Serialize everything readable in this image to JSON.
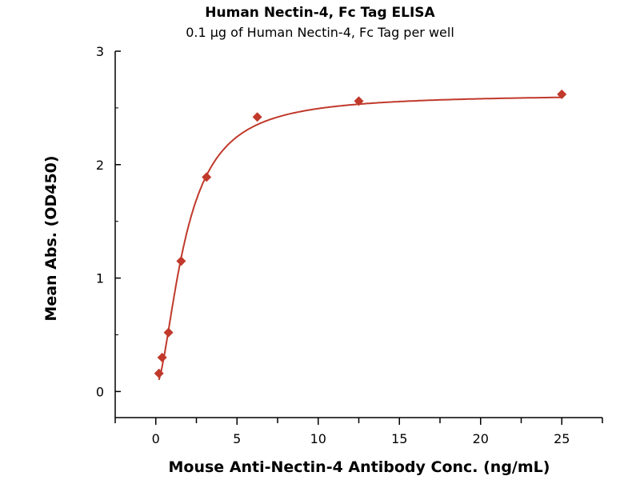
{
  "chart_data": {
    "type": "scatter",
    "title": "Human Nectin-4, Fc Tag ELISA",
    "subtitle": "0.1 µg of Human Nectin-4, Fc Tag per well",
    "xlabel": "Mouse Anti-Nectin-4 Antibody Conc. (ng/mL)",
    "ylabel": "Mean Abs. (OD450)",
    "xlim": [
      -2.5,
      27.5
    ],
    "ylim": [
      -0.23,
      3
    ],
    "xticks": [
      0,
      5,
      10,
      15,
      20,
      25
    ],
    "yticks": [
      0,
      1,
      2,
      3
    ],
    "grid": false,
    "color": "#c0392b",
    "marker": "diamond",
    "fit_curve": true,
    "x": [
      0.195,
      0.39,
      0.78,
      1.56,
      3.125,
      6.25,
      12.5,
      25
    ],
    "y": [
      0.16,
      0.3,
      0.52,
      1.15,
      1.89,
      2.42,
      2.56,
      2.62
    ]
  }
}
